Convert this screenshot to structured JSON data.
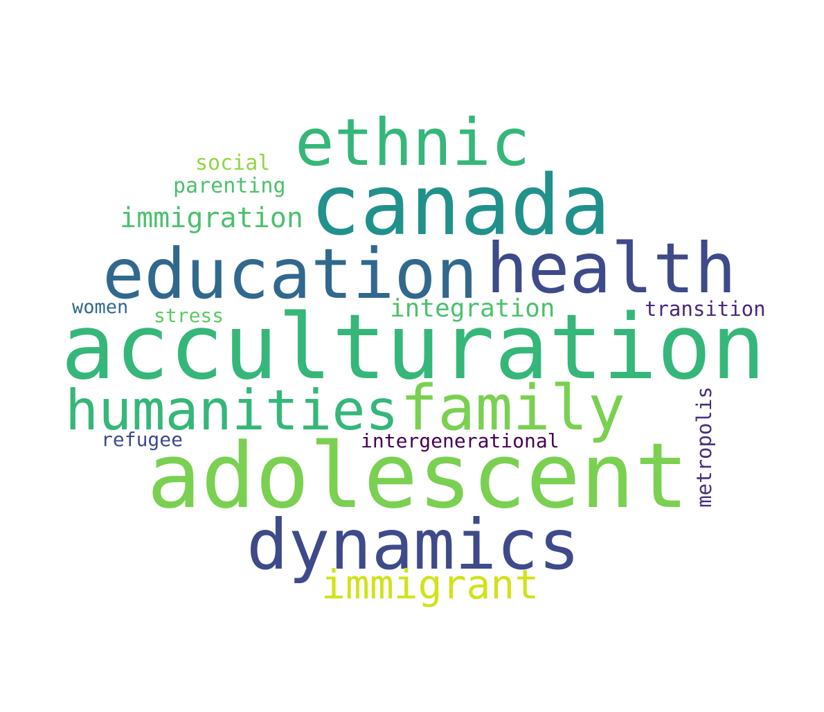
{
  "words": [
    {
      "text": "acculturation",
      "color": "#35b779"
    },
    {
      "text": "adolescent",
      "color": "#7ad151"
    },
    {
      "text": "canada",
      "color": "#21918c"
    },
    {
      "text": "education",
      "color": "#31688e"
    },
    {
      "text": "health",
      "color": "#3e4a89"
    },
    {
      "text": "dynamics",
      "color": "#3e4a89"
    },
    {
      "text": "ethnic",
      "color": "#35b779"
    },
    {
      "text": "humanities",
      "color": "#35b779"
    },
    {
      "text": "family",
      "color": "#7ad151"
    },
    {
      "text": "immigrant",
      "color": "#d2e21b"
    },
    {
      "text": "immigration",
      "color": "#4ac16d"
    },
    {
      "text": "integration",
      "color": "#4ac16d"
    },
    {
      "text": "intergenerational",
      "color": "#440154"
    },
    {
      "text": "transition",
      "color": "#482878"
    },
    {
      "text": "metropolis",
      "color": "#472d7b"
    },
    {
      "text": "social",
      "color": "#8fd744"
    },
    {
      "text": "parenting",
      "color": "#4ac16d"
    },
    {
      "text": "women",
      "color": "#31688e"
    },
    {
      "text": "stress",
      "color": "#5ec962"
    },
    {
      "text": "refugee",
      "color": "#3e4a89"
    }
  ]
}
